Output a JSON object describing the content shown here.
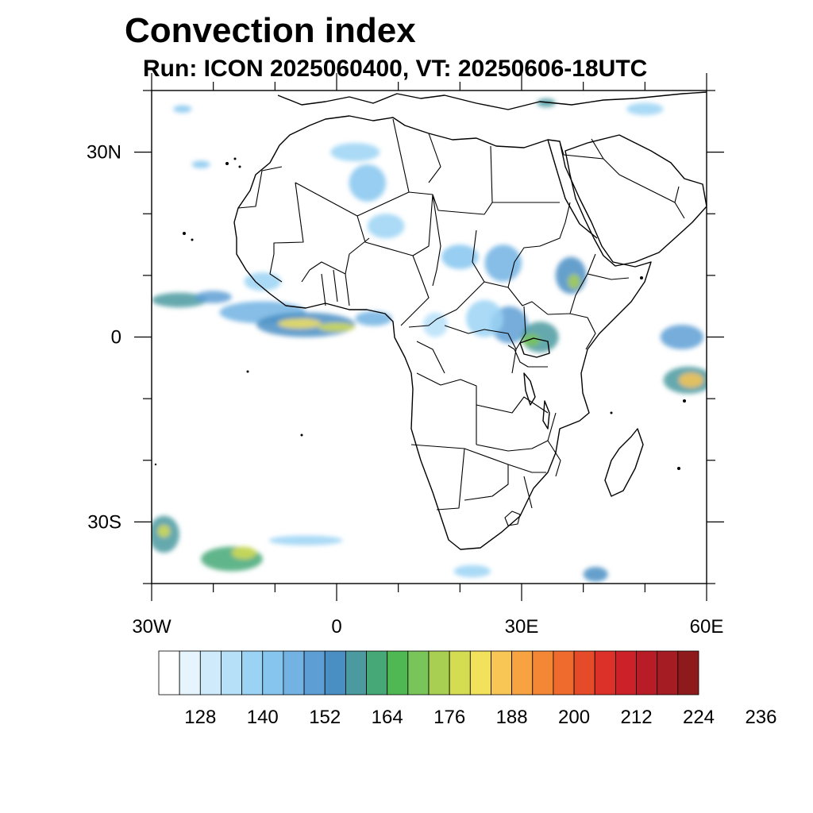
{
  "title": "Convection index",
  "subtitle": "Run: ICON 2025060400,  VT: 20250606-18UTC",
  "map": {
    "extent": {
      "lon_min": -30,
      "lon_max": 60,
      "lat_min": -40,
      "lat_max": 40
    },
    "lat_ticks": [
      {
        "lat": 30,
        "label": "30N"
      },
      {
        "lat": 0,
        "label": "0"
      },
      {
        "lat": -30,
        "label": "30S"
      }
    ],
    "lon_ticks": [
      {
        "lon": -30,
        "label": "30W"
      },
      {
        "lon": 0,
        "label": "0"
      },
      {
        "lon": 30,
        "label": "30E"
      },
      {
        "lon": 60,
        "label": "60E"
      }
    ]
  },
  "colorbar": {
    "labels": [
      "128",
      "140",
      "152",
      "164",
      "176",
      "188",
      "200",
      "212",
      "224",
      "236"
    ],
    "colors": [
      "#ffffff",
      "#e6f5fd",
      "#cfeafb",
      "#b6e0f8",
      "#9bd3f5",
      "#85c5ee",
      "#72b3e3",
      "#5d9fd5",
      "#4a8fc4",
      "#4a9aa0",
      "#46a877",
      "#4fb853",
      "#7ac55a",
      "#a8cf52",
      "#d4dc52",
      "#f2e15b",
      "#f8c655",
      "#f7a341",
      "#f38736",
      "#ee6a2d",
      "#e64b29",
      "#dc3128",
      "#cc2128",
      "#b81c26",
      "#a51c22",
      "#8e1a1c"
    ]
  },
  "convection_areas": [
    {
      "lon": -25.5,
      "lat": 6,
      "rlon": 4.5,
      "rlat": 1.2,
      "level": 9
    },
    {
      "lon": -20,
      "lat": 6.5,
      "rlon": 3,
      "rlat": 1,
      "level": 7
    },
    {
      "lon": -12,
      "lat": 4,
      "rlon": 7,
      "rlat": 1.8,
      "level": 6
    },
    {
      "lon": -5,
      "lat": 2,
      "rlon": 8,
      "rlat": 2,
      "level": 8
    },
    {
      "lon": -6,
      "lat": 2.2,
      "rlon": 3.5,
      "rlat": 0.8,
      "level": 15
    },
    {
      "lon": 0,
      "lat": 1.6,
      "rlon": 3,
      "rlat": 0.7,
      "level": 14
    },
    {
      "lon": 6,
      "lat": 3,
      "rlon": 3,
      "rlat": 1.2,
      "level": 6
    },
    {
      "lon": 3,
      "lat": 30,
      "rlon": 4,
      "rlat": 1.5,
      "level": 4
    },
    {
      "lon": 5,
      "lat": 25,
      "rlon": 3,
      "rlat": 3,
      "level": 5
    },
    {
      "lon": 8,
      "lat": 18,
      "rlon": 3,
      "rlat": 2,
      "level": 4
    },
    {
      "lon": 20,
      "lat": 13,
      "rlon": 3,
      "rlat": 2,
      "level": 5
    },
    {
      "lon": 27,
      "lat": 12,
      "rlon": 3,
      "rlat": 3,
      "level": 6
    },
    {
      "lon": 28,
      "lat": 2,
      "rlon": 3,
      "rlat": 3,
      "level": 7
    },
    {
      "lon": 33,
      "lat": 0,
      "rlon": 3,
      "rlat": 2.5,
      "level": 9
    },
    {
      "lon": 31.5,
      "lat": -0.5,
      "rlon": 1.5,
      "rlat": 1,
      "level": 12
    },
    {
      "lon": 38,
      "lat": 10,
      "rlon": 2.5,
      "rlat": 3,
      "level": 8
    },
    {
      "lon": 38.5,
      "lat": 9,
      "rlon": 1,
      "rlat": 1.2,
      "level": 13
    },
    {
      "lon": 56,
      "lat": 0,
      "rlon": 3.5,
      "rlat": 2,
      "level": 7
    },
    {
      "lon": 57,
      "lat": -7,
      "rlon": 4,
      "rlat": 2.2,
      "level": 9
    },
    {
      "lon": 57.5,
      "lat": -7,
      "rlon": 2,
      "rlat": 1.2,
      "level": 16
    },
    {
      "lon": -28,
      "lat": -32,
      "rlon": 2.5,
      "rlat": 3,
      "level": 9
    },
    {
      "lon": -28,
      "lat": -31.5,
      "rlon": 1,
      "rlat": 1,
      "level": 14
    },
    {
      "lon": -17,
      "lat": -36,
      "rlon": 5,
      "rlat": 2,
      "level": 10
    },
    {
      "lon": -15,
      "lat": -35,
      "rlon": 2,
      "rlat": 1,
      "level": 14
    },
    {
      "lon": -5,
      "lat": -33,
      "rlon": 6,
      "rlat": 0.8,
      "level": 4
    },
    {
      "lon": 22,
      "lat": -38,
      "rlon": 3,
      "rlat": 1,
      "level": 4
    },
    {
      "lon": 42,
      "lat": -38.5,
      "rlon": 2,
      "rlat": 1.2,
      "level": 8
    },
    {
      "lon": 50,
      "lat": 37,
      "rlon": 3,
      "rlat": 1,
      "level": 4
    },
    {
      "lon": 34,
      "lat": 38,
      "rlon": 1.5,
      "rlat": 0.7,
      "level": 9
    },
    {
      "lon": -12,
      "lat": 9,
      "rlon": 3,
      "rlat": 1.5,
      "level": 4
    },
    {
      "lon": -25,
      "lat": 37,
      "rlon": 1.5,
      "rlat": 0.6,
      "level": 5
    },
    {
      "lon": -22,
      "lat": 28,
      "rlon": 1.5,
      "rlat": 0.6,
      "level": 5
    },
    {
      "lon": 24,
      "lat": 3,
      "rlon": 3,
      "rlat": 3,
      "level": 4
    },
    {
      "lon": 16,
      "lat": 2,
      "rlon": 2,
      "rlat": 2,
      "level": 3
    }
  ]
}
